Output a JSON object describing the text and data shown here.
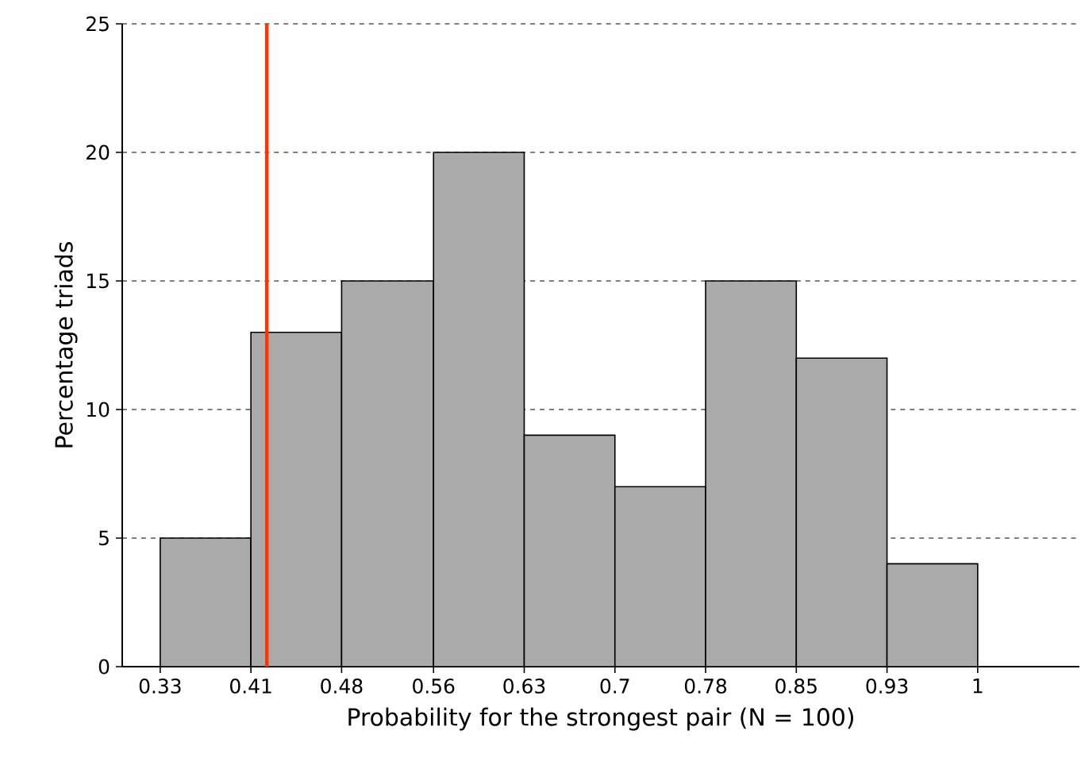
{
  "chart_data": {
    "type": "histogram",
    "xlabel": "Probability for the strongest pair (N = 100)",
    "ylabel": "Percentage triads",
    "bins": [
      0.333,
      0.407,
      0.481,
      0.556,
      0.63,
      0.704,
      0.778,
      0.852,
      0.926,
      1
    ],
    "values": [
      5,
      13,
      15,
      20,
      9,
      7,
      15,
      12,
      4
    ],
    "color": "#aaaaaa",
    "xlim": [
      0.302,
      1.083
    ],
    "xticks": [
      {
        "value": 0.333,
        "label": "0.33"
      },
      {
        "value": 0.407,
        "label": "0.41"
      },
      {
        "value": 0.481,
        "label": "0.48"
      },
      {
        "value": 0.556,
        "label": "0.56"
      },
      {
        "value": 0.63,
        "label": "0.63"
      },
      {
        "value": 0.704,
        "label": "0.7"
      },
      {
        "value": 0.778,
        "label": "0.78"
      },
      {
        "value": 0.852,
        "label": "0.85"
      },
      {
        "value": 0.926,
        "label": "0.93"
      },
      1
    ],
    "ylim": [
      0,
      25
    ],
    "yticks": [
      0,
      5,
      10,
      15,
      20,
      25
    ],
    "grid": "y",
    "ref_lines": [
      {
        "axis": "x",
        "value": 0.42,
        "color": "#ff3300"
      }
    ]
  }
}
